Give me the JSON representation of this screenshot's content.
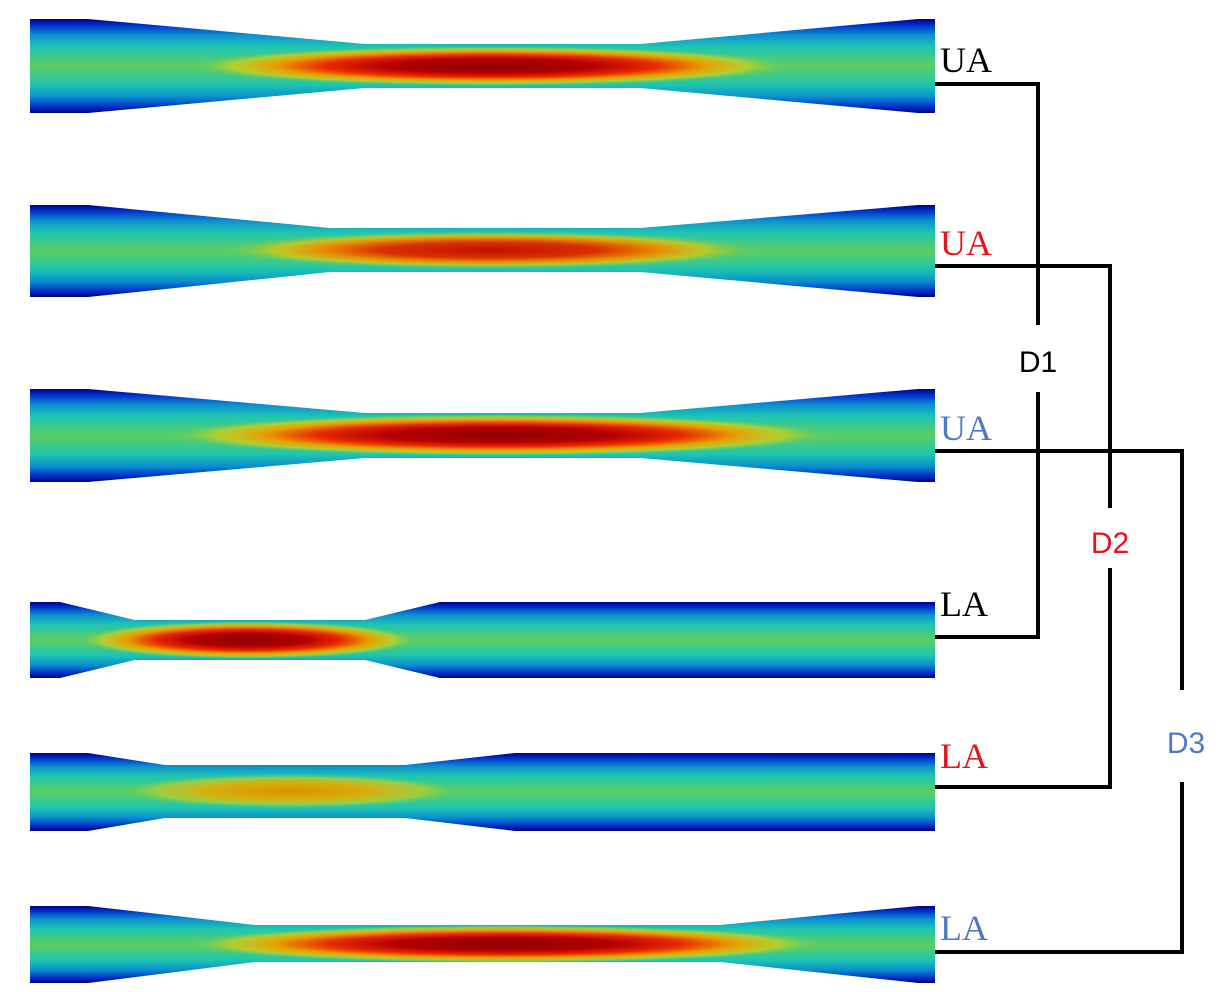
{
  "colors": {
    "black": "#000000",
    "red": "#e8121a",
    "blue": "#4f79c4"
  },
  "vessels": [
    {
      "label": "UA",
      "color": "black",
      "field": "velocity-magnitude-colormap"
    },
    {
      "label": "UA",
      "color": "red",
      "field": "velocity-magnitude-colormap"
    },
    {
      "label": "UA",
      "color": "blue",
      "field": "velocity-magnitude-colormap"
    },
    {
      "label": "LA",
      "color": "black",
      "field": "velocity-magnitude-colormap"
    },
    {
      "label": "LA",
      "color": "red",
      "field": "velocity-magnitude-colormap"
    },
    {
      "label": "LA",
      "color": "blue",
      "field": "velocity-magnitude-colormap"
    }
  ],
  "pairs": [
    {
      "label": "D1",
      "color": "black",
      "from": 0,
      "to": 3
    },
    {
      "label": "D2",
      "color": "red",
      "from": 1,
      "to": 4
    },
    {
      "label": "D3",
      "color": "blue",
      "from": 2,
      "to": 5
    }
  ]
}
